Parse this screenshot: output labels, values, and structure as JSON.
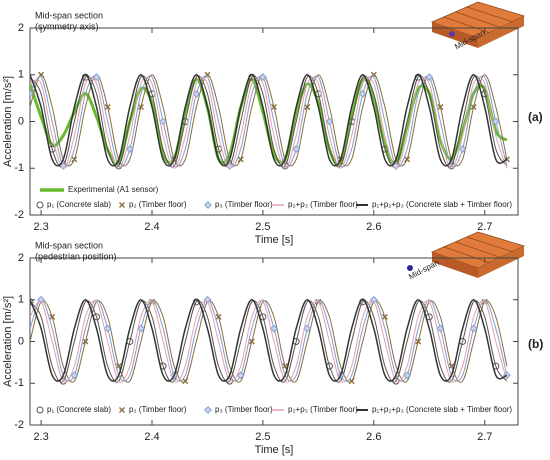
{
  "chart_data": [
    {
      "type": "line",
      "panel_label": "(a)",
      "inset_label": "Mid-span",
      "annotations": [
        "Mid-span section",
        "(symmetry axis)"
      ],
      "xlabel": "Time  [s]",
      "ylabel": "Acceleration  [m/s²]",
      "xlim": [
        2.29,
        2.73
      ],
      "ylim": [
        -2,
        2
      ],
      "xticks": [
        2.3,
        2.4,
        2.5,
        2.6,
        2.7
      ],
      "yticks": [
        -2,
        -1,
        0,
        1,
        2
      ],
      "grid": false,
      "x": [
        2.29,
        2.3,
        2.31,
        2.32,
        2.33,
        2.34,
        2.35,
        2.36,
        2.37,
        2.38,
        2.39,
        2.4,
        2.41,
        2.42,
        2.43,
        2.44,
        2.45,
        2.46,
        2.47,
        2.48,
        2.49,
        2.5,
        2.51,
        2.52,
        2.53,
        2.54,
        2.55,
        2.56,
        2.57,
        2.58,
        2.59,
        2.6,
        2.61,
        2.62,
        2.63,
        2.64,
        2.65,
        2.66,
        2.67,
        2.68,
        2.69,
        2.7,
        2.71,
        2.72
      ],
      "series": [
        {
          "name": "Experimental (A1 sensor)",
          "color": "#66bb2a",
          "width": 3,
          "marker": null,
          "values": [
            0.8,
            0.1,
            -0.5,
            -0.3,
            0.2,
            0.6,
            0.1,
            -0.6,
            -0.9,
            0,
            0.7,
            0.4,
            -0.7,
            -0.8,
            0.2,
            0.9,
            0.3,
            -0.8,
            -0.7,
            0.3,
            0.9,
            0.2,
            -0.7,
            -0.8,
            0.2,
            0.8,
            0.4,
            -0.6,
            -0.9,
            0.1,
            0.9,
            0.5,
            -0.5,
            -0.9,
            -0.1,
            0.7,
            0.6,
            -0.4,
            -0.8,
            -0.2,
            0.6,
            0.7,
            -0.2,
            -0.4
          ]
        },
        {
          "name": "p₁ (Concrete slab)",
          "color": "#555555",
          "width": 1,
          "marker": "circle",
          "values": [
            0.95,
            0.59,
            -0.59,
            -0.95,
            0,
            0.95,
            0.59,
            -0.59,
            -0.95,
            0,
            0.95,
            0.59,
            -0.59,
            -0.95,
            0,
            0.95,
            0.59,
            -0.59,
            -0.95,
            0,
            0.95,
            0.59,
            -0.59,
            -0.95,
            0,
            0.95,
            0.59,
            -0.59,
            -0.95,
            0,
            0.95,
            0.59,
            -0.59,
            -0.95,
            0,
            0.95,
            0.59,
            -0.59,
            -0.95,
            0,
            0.95,
            0.59,
            -0.59,
            -0.95
          ]
        },
        {
          "name": "p₂ (Timber floor)",
          "color": "#8a6d3b",
          "width": 1,
          "marker": "x",
          "values": [
            0.31,
            1,
            0.31,
            -0.81,
            -0.81,
            0.31,
            1,
            0.31,
            -0.81,
            -0.81,
            0.31,
            1,
            0.31,
            -0.81,
            -0.81,
            0.31,
            1,
            0.31,
            -0.81,
            -0.81,
            0.31,
            1,
            0.31,
            -0.81,
            -0.81,
            0.31,
            1,
            0.31,
            -0.81,
            -0.81,
            0.31,
            1,
            0.31,
            -0.81,
            -0.81,
            0.31,
            1,
            0.31,
            -0.81,
            -0.81,
            0.31,
            1,
            0.31,
            -0.81
          ]
        },
        {
          "name": "p₃ (Timber floor)",
          "color": "#7f9fd6",
          "width": 1,
          "marker": "diamond",
          "values": [
            0.59,
            0.95,
            0,
            -0.95,
            -0.59,
            0.59,
            0.95,
            0,
            -0.95,
            -0.59,
            0.59,
            0.95,
            0,
            -0.95,
            -0.59,
            0.59,
            0.95,
            0,
            -0.95,
            -0.59,
            0.59,
            0.95,
            0,
            -0.95,
            -0.59,
            0.59,
            0.95,
            0,
            -0.95,
            -0.59,
            0.59,
            0.95,
            0,
            -0.95,
            -0.59,
            0.59,
            0.95,
            0,
            -0.95,
            -0.59,
            0.59,
            0.95,
            0,
            -0.95
          ]
        },
        {
          "name": "p₂+p₃ (Timber floor)",
          "color": "#e8a0a8",
          "width": 1,
          "marker": null,
          "values": [
            0.81,
            0.81,
            -0.31,
            -1,
            -0.31,
            0.81,
            0.81,
            -0.31,
            -1,
            -0.31,
            0.81,
            0.81,
            -0.31,
            -1,
            -0.31,
            0.81,
            0.81,
            -0.31,
            -1,
            -0.31,
            0.81,
            0.81,
            -0.31,
            -1,
            -0.31,
            0.81,
            0.81,
            -0.31,
            -1,
            -0.31,
            0.81,
            0.81,
            -0.31,
            -1,
            -0.31,
            0.81,
            0.81,
            -0.31,
            -1,
            -0.31,
            0.81,
            0.81,
            -0.31,
            -1
          ]
        },
        {
          "name": "p₁+p₂+p₃ (Concrete slab + Timber floor)",
          "color": "#333333",
          "width": 1.5,
          "marker": null,
          "values": [
            1,
            0.31,
            -0.81,
            -0.81,
            0.31,
            1,
            0.31,
            -0.81,
            -0.81,
            0.31,
            1,
            0.31,
            -0.81,
            -0.81,
            0.31,
            1,
            0.31,
            -0.81,
            -0.81,
            0.31,
            1,
            0.31,
            -0.81,
            -0.81,
            0.31,
            1,
            0.31,
            -0.81,
            -0.81,
            0.31,
            1,
            0.31,
            -0.81,
            -0.81,
            0.31,
            1,
            0.31,
            -0.81,
            -0.81,
            0.31,
            1,
            0.31,
            -0.81,
            -0.81
          ]
        }
      ]
    },
    {
      "type": "line",
      "panel_label": "(b)",
      "inset_label": "Mid-span",
      "annotations": [
        "Mid-span section",
        "(pedestrian position)"
      ],
      "xlabel": "Time  [s]",
      "ylabel": "Acceleration  [m/s²]",
      "xlim": [
        2.29,
        2.73
      ],
      "ylim": [
        -2,
        2
      ],
      "xticks": [
        2.3,
        2.4,
        2.5,
        2.6,
        2.7
      ],
      "yticks": [
        -2,
        -1,
        0,
        1,
        2
      ],
      "grid": false,
      "x": [
        2.29,
        2.3,
        2.31,
        2.32,
        2.33,
        2.34,
        2.35,
        2.36,
        2.37,
        2.38,
        2.39,
        2.4,
        2.41,
        2.42,
        2.43,
        2.44,
        2.45,
        2.46,
        2.47,
        2.48,
        2.49,
        2.5,
        2.51,
        2.52,
        2.53,
        2.54,
        2.55,
        2.56,
        2.57,
        2.58,
        2.59,
        2.6,
        2.61,
        2.62,
        2.63,
        2.64,
        2.65,
        2.66,
        2.67,
        2.68,
        2.69,
        2.7,
        2.71,
        2.72
      ],
      "series": [
        {
          "name": "p₁ (Concrete slab)",
          "color": "#555555",
          "width": 1,
          "marker": "circle",
          "values": [
            0.95,
            0.59,
            -0.59,
            -0.95,
            0,
            0.95,
            0.59,
            -0.59,
            -0.95,
            0,
            0.95,
            0.59,
            -0.59,
            -0.95,
            0,
            0.95,
            0.59,
            -0.59,
            -0.95,
            0,
            0.95,
            0.59,
            -0.59,
            -0.95,
            0,
            0.95,
            0.59,
            -0.59,
            -0.95,
            0,
            0.95,
            0.59,
            -0.59,
            -0.95,
            0,
            0.95,
            0.59,
            -0.59,
            -0.95,
            0,
            0.95,
            0.59,
            -0.59,
            -0.95
          ]
        },
        {
          "name": "p₂ (Timber floor)",
          "color": "#8a6d3b",
          "width": 1,
          "marker": "x",
          "values": [
            0,
            0.95,
            0.59,
            -0.59,
            -0.95,
            0,
            0.95,
            0.59,
            -0.59,
            -0.95,
            0,
            0.95,
            0.59,
            -0.59,
            -0.95,
            0,
            0.95,
            0.59,
            -0.59,
            -0.95,
            0,
            0.95,
            0.59,
            -0.59,
            -0.95,
            0,
            0.95,
            0.59,
            -0.59,
            -0.95,
            0,
            0.95,
            0.59,
            -0.59,
            -0.95,
            0,
            0.95,
            0.59,
            -0.59,
            -0.95,
            0,
            0.95,
            0.59,
            -0.59
          ]
        },
        {
          "name": "p₃ (Timber floor)",
          "color": "#7f9fd6",
          "width": 1,
          "marker": "diamond",
          "values": [
            0.31,
            1,
            0.31,
            -0.81,
            -0.81,
            0.31,
            1,
            0.31,
            -0.81,
            -0.81,
            0.31,
            1,
            0.31,
            -0.81,
            -0.81,
            0.31,
            1,
            0.31,
            -0.81,
            -0.81,
            0.31,
            1,
            0.31,
            -0.81,
            -0.81,
            0.31,
            1,
            0.31,
            -0.81,
            -0.81,
            0.31,
            1,
            0.31,
            -0.81,
            -0.81,
            0.31,
            1,
            0.31,
            -0.81,
            -0.81,
            0.31,
            1,
            0.31,
            -0.81
          ]
        },
        {
          "name": "p₂+p₃ (Timber floor)",
          "color": "#e8a0a8",
          "width": 1,
          "marker": null,
          "values": [
            0.59,
            0.95,
            0,
            -0.95,
            -0.59,
            0.59,
            0.95,
            0,
            -0.95,
            -0.59,
            0.59,
            0.95,
            0,
            -0.95,
            -0.59,
            0.59,
            0.95,
            0,
            -0.95,
            -0.59,
            0.59,
            0.95,
            0,
            -0.95,
            -0.59,
            0.59,
            0.95,
            0,
            -0.95,
            -0.59,
            0.59,
            0.95,
            0,
            -0.95,
            -0.59,
            0.59,
            0.95,
            0,
            -0.95,
            -0.59,
            0.59,
            0.95,
            0,
            -0.95
          ]
        },
        {
          "name": "p₁+p₂+p₃ (Concrete slab + Timber floor)",
          "color": "#333333",
          "width": 1.5,
          "marker": null,
          "values": [
            1,
            0.31,
            -0.81,
            -0.81,
            0.31,
            1,
            0.31,
            -0.81,
            -0.81,
            0.31,
            1,
            0.31,
            -0.81,
            -0.81,
            0.31,
            1,
            0.31,
            -0.81,
            -0.81,
            0.31,
            1,
            0.31,
            -0.81,
            -0.81,
            0.31,
            1,
            0.31,
            -0.81,
            -0.81,
            0.31,
            1,
            0.31,
            -0.81,
            -0.81,
            0.31,
            1,
            0.31,
            -0.81,
            -0.81,
            0.31,
            1,
            0.31,
            -0.81,
            -0.81
          ]
        }
      ]
    }
  ]
}
